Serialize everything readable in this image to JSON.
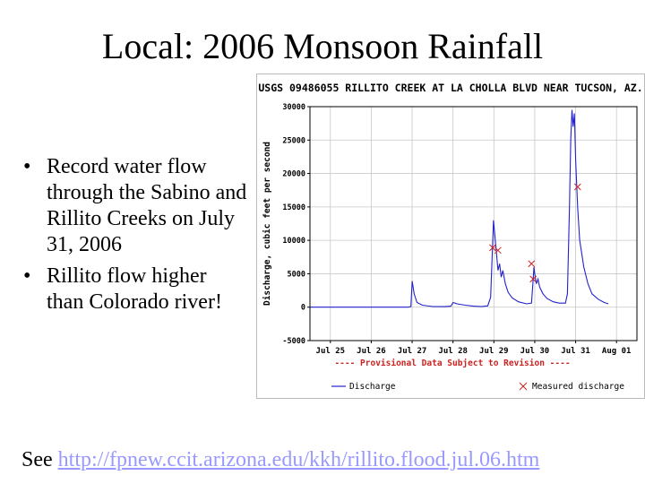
{
  "slide": {
    "title": "Local:  2006 Monsoon Rainfall",
    "bullets": [
      "Record water flow through the Sabino and Rillito Creeks on July 31, 2006",
      "Rillito flow higher than Colorado river!"
    ],
    "bullet_glyph": "•",
    "footer_prefix": "See ",
    "footer_link": "http://fpnew.ccit.arizona.edu/kkh/rillito.flood.jul.06.htm"
  },
  "chart_data": {
    "type": "line",
    "title": "USGS 09486055 RILLITO CREEK AT LA CHOLLA BLVD NEAR TUCSON, AZ.",
    "ylabel": "Discharge, cubic feet per second",
    "xlabel": "",
    "note": "---- Provisional Data Subject to Revision ----",
    "ylim": [
      -5000,
      30000
    ],
    "yticks": [
      -5000,
      0,
      5000,
      10000,
      15000,
      20000,
      25000,
      30000
    ],
    "xlim": [
      24.5,
      32.5
    ],
    "xticks": [
      {
        "value": 25,
        "label": "Jul 25"
      },
      {
        "value": 26,
        "label": "Jul 26"
      },
      {
        "value": 27,
        "label": "Jul 27"
      },
      {
        "value": 28,
        "label": "Jul 28"
      },
      {
        "value": 29,
        "label": "Jul 29"
      },
      {
        "value": 30,
        "label": "Jul 30"
      },
      {
        "value": 31,
        "label": "Jul 31"
      },
      {
        "value": 32,
        "label": "Aug 01"
      }
    ],
    "grid": true,
    "legend_position": "bottom",
    "series": [
      {
        "name": "Discharge",
        "color": "#2222cc",
        "points": [
          [
            24.5,
            0
          ],
          [
            26.9,
            0
          ],
          [
            26.97,
            100
          ],
          [
            27.0,
            3900
          ],
          [
            27.05,
            2000
          ],
          [
            27.12,
            700
          ],
          [
            27.25,
            300
          ],
          [
            27.5,
            100
          ],
          [
            27.8,
            80
          ],
          [
            27.95,
            150
          ],
          [
            28.0,
            700
          ],
          [
            28.1,
            500
          ],
          [
            28.3,
            300
          ],
          [
            28.5,
            150
          ],
          [
            28.7,
            100
          ],
          [
            28.85,
            200
          ],
          [
            28.92,
            1500
          ],
          [
            28.96,
            8000
          ],
          [
            28.99,
            13000
          ],
          [
            29.02,
            11000
          ],
          [
            29.05,
            9000
          ],
          [
            29.1,
            5500
          ],
          [
            29.14,
            6500
          ],
          [
            29.18,
            4500
          ],
          [
            29.22,
            5500
          ],
          [
            29.28,
            3500
          ],
          [
            29.35,
            2200
          ],
          [
            29.45,
            1400
          ],
          [
            29.6,
            800
          ],
          [
            29.8,
            500
          ],
          [
            29.92,
            600
          ],
          [
            29.96,
            4000
          ],
          [
            29.98,
            6000
          ],
          [
            30.0,
            5000
          ],
          [
            30.04,
            3500
          ],
          [
            30.08,
            4200
          ],
          [
            30.12,
            3000
          ],
          [
            30.2,
            2000
          ],
          [
            30.3,
            1300
          ],
          [
            30.45,
            800
          ],
          [
            30.6,
            600
          ],
          [
            30.75,
            600
          ],
          [
            30.8,
            2000
          ],
          [
            30.85,
            15000
          ],
          [
            30.88,
            25000
          ],
          [
            30.91,
            29500
          ],
          [
            30.94,
            27000
          ],
          [
            30.97,
            29000
          ],
          [
            31.0,
            22000
          ],
          [
            31.05,
            15000
          ],
          [
            31.1,
            10000
          ],
          [
            31.2,
            6000
          ],
          [
            31.3,
            3500
          ],
          [
            31.4,
            2000
          ],
          [
            31.55,
            1200
          ],
          [
            31.7,
            700
          ],
          [
            31.8,
            500
          ]
        ]
      },
      {
        "name": "Measured discharge",
        "color": "#cc2222",
        "marker": "x",
        "points": [
          [
            28.97,
            8900
          ],
          [
            29.1,
            8500
          ],
          [
            29.92,
            6500
          ],
          [
            29.96,
            4200
          ],
          [
            31.05,
            18000
          ]
        ]
      }
    ]
  }
}
